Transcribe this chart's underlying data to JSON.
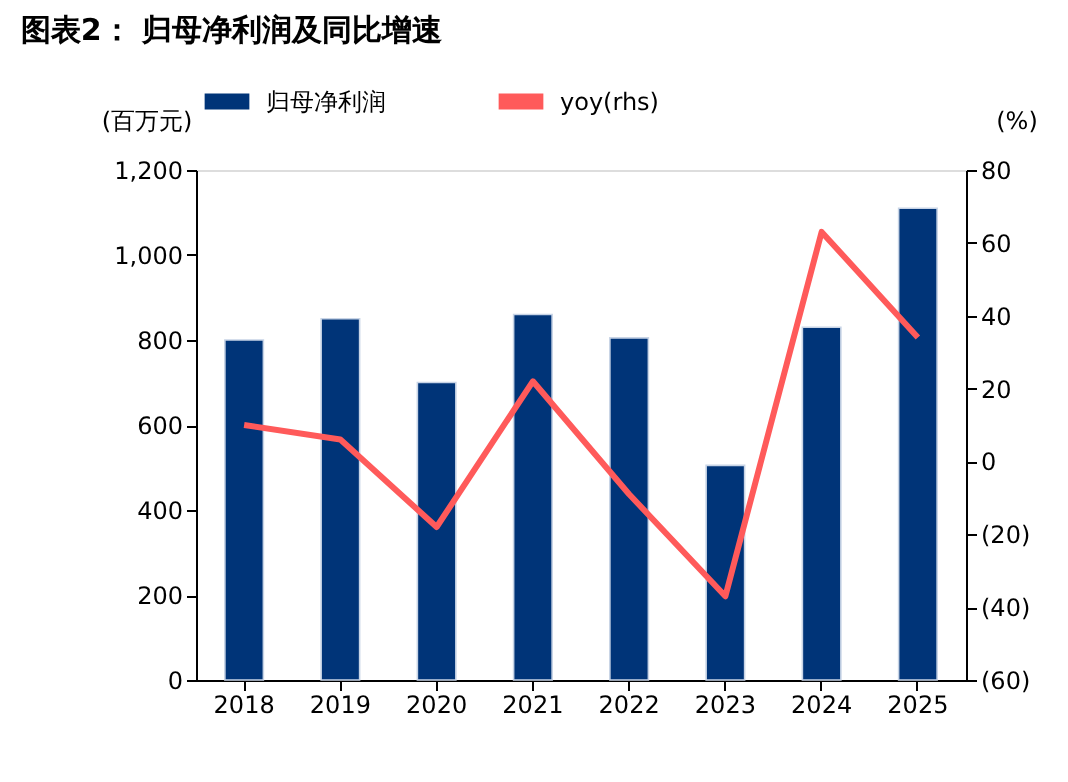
{
  "chart_data": {
    "type": "bar",
    "title": "图表2：  归母净利润及同比增速",
    "categories": [
      "2018",
      "2019",
      "2020",
      "2021",
      "2022",
      "2023",
      "2024",
      "2025"
    ],
    "ylabel": "(百万元)",
    "y2label": "(%)",
    "series": [
      {
        "name": "归母净利润",
        "color": "#003478",
        "values": [
          800,
          850,
          700,
          860,
          805,
          505,
          830,
          1110
        ]
      },
      {
        "name": "yoy(rhs)",
        "color": "#ff5a5a",
        "type": "line",
        "axis": "y2",
        "values": [
          10,
          6,
          -18,
          22,
          -9,
          -37,
          63,
          34
        ]
      }
    ],
    "ylim": [
      0,
      1200
    ],
    "yticks": [
      0,
      200,
      400,
      600,
      800,
      {
        "value": 1000,
        "label": "1,000"
      },
      {
        "value": 1200,
        "label": "1,200"
      }
    ],
    "y2lim": [
      -60,
      80
    ],
    "y2ticks": [
      {
        "value": -60,
        "label": "(60)"
      },
      {
        "value": -40,
        "label": "(40)"
      },
      {
        "value": -20,
        "label": "(20)"
      },
      0,
      20,
      40,
      60,
      80
    ],
    "legend": "top",
    "grid": false,
    "marker": "none",
    "line_style": "solid"
  }
}
